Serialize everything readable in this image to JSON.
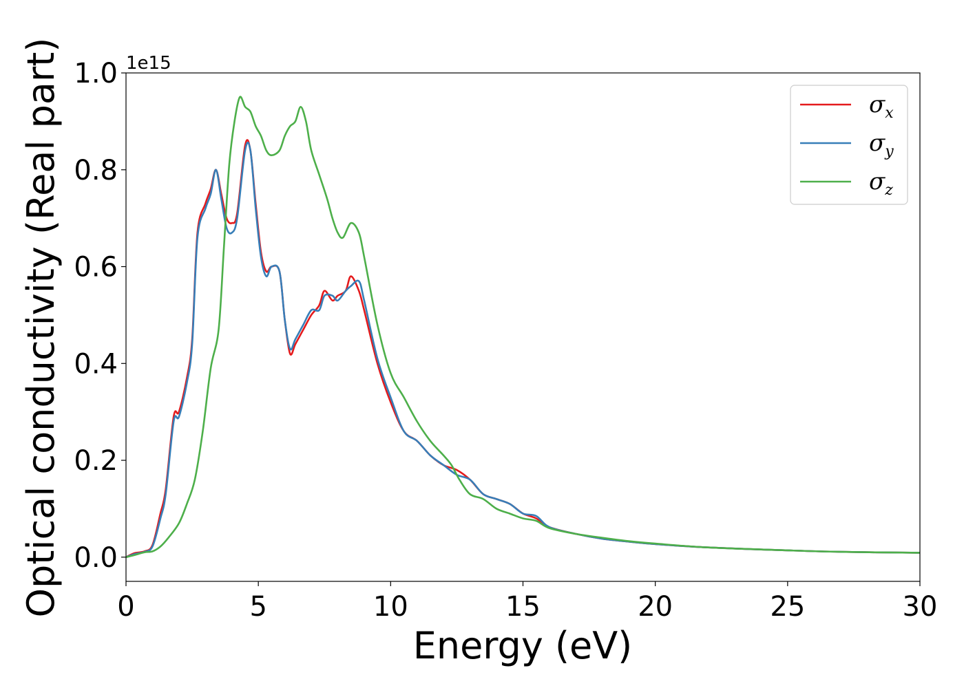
{
  "chart_data": {
    "type": "line",
    "xlabel": "Energy (eV)",
    "ylabel": "Optical conductivity (Real part)",
    "offset_text": "1e15",
    "xlim": [
      0,
      30
    ],
    "ylim": [
      -0.05,
      1.0
    ],
    "xticks": [
      0,
      5,
      10,
      15,
      20,
      25,
      30
    ],
    "yticks": [
      0.0,
      0.2,
      0.4,
      0.6,
      0.8,
      1.0
    ],
    "xtick_labels": [
      "0",
      "5",
      "10",
      "15",
      "20",
      "25",
      "30"
    ],
    "ytick_labels": [
      "0.0",
      "0.2",
      "0.4",
      "0.6",
      "0.8",
      "1.0"
    ],
    "grid": false,
    "legend_position": "top-right",
    "series": [
      {
        "name": "σ",
        "subscript": "x",
        "color": "#e41a1c",
        "x": [
          0,
          0.3,
          0.7,
          1.0,
          1.3,
          1.5,
          1.8,
          2.0,
          2.3,
          2.5,
          2.7,
          3.0,
          3.2,
          3.4,
          3.6,
          3.8,
          4.0,
          4.2,
          4.5,
          4.7,
          4.9,
          5.1,
          5.3,
          5.5,
          5.8,
          6.0,
          6.2,
          6.4,
          6.7,
          7.0,
          7.3,
          7.5,
          7.8,
          8.0,
          8.3,
          8.5,
          8.8,
          9.0,
          9.5,
          10.0,
          10.5,
          11.0,
          11.5,
          12.0,
          12.5,
          13.0,
          13.5,
          14.0,
          14.5,
          15.0,
          15.5,
          16.0,
          17.0,
          18.0,
          19.0,
          20.0,
          22.0,
          25.0,
          27.0,
          30.0
        ],
        "values": [
          0.0,
          0.008,
          0.012,
          0.025,
          0.09,
          0.14,
          0.29,
          0.3,
          0.37,
          0.45,
          0.67,
          0.73,
          0.76,
          0.8,
          0.75,
          0.7,
          0.69,
          0.71,
          0.85,
          0.84,
          0.73,
          0.63,
          0.59,
          0.6,
          0.59,
          0.49,
          0.42,
          0.44,
          0.47,
          0.5,
          0.52,
          0.55,
          0.53,
          0.54,
          0.55,
          0.58,
          0.55,
          0.51,
          0.4,
          0.32,
          0.26,
          0.24,
          0.21,
          0.19,
          0.18,
          0.16,
          0.13,
          0.12,
          0.11,
          0.09,
          0.08,
          0.062,
          0.048,
          0.038,
          0.032,
          0.027,
          0.02,
          0.014,
          0.011,
          0.009
        ]
      },
      {
        "name": "σ",
        "subscript": "y",
        "color": "#377eb8",
        "x": [
          0,
          0.3,
          0.7,
          1.0,
          1.3,
          1.5,
          1.8,
          2.0,
          2.3,
          2.5,
          2.7,
          3.0,
          3.2,
          3.4,
          3.6,
          3.8,
          4.0,
          4.2,
          4.5,
          4.7,
          4.9,
          5.1,
          5.3,
          5.5,
          5.8,
          6.0,
          6.2,
          6.4,
          6.7,
          7.0,
          7.3,
          7.5,
          7.8,
          8.0,
          8.3,
          8.5,
          8.8,
          9.0,
          9.5,
          10.0,
          10.5,
          11.0,
          11.5,
          12.0,
          12.5,
          13.0,
          13.5,
          14.0,
          14.5,
          15.0,
          15.5,
          16.0,
          17.0,
          18.0,
          19.0,
          20.0,
          22.0,
          25.0,
          27.0,
          30.0
        ],
        "values": [
          0.0,
          0.006,
          0.011,
          0.022,
          0.08,
          0.13,
          0.28,
          0.29,
          0.36,
          0.44,
          0.66,
          0.72,
          0.75,
          0.8,
          0.74,
          0.68,
          0.67,
          0.7,
          0.84,
          0.84,
          0.72,
          0.62,
          0.58,
          0.6,
          0.59,
          0.49,
          0.43,
          0.45,
          0.48,
          0.51,
          0.51,
          0.54,
          0.54,
          0.53,
          0.55,
          0.56,
          0.57,
          0.53,
          0.41,
          0.33,
          0.26,
          0.24,
          0.21,
          0.19,
          0.17,
          0.16,
          0.13,
          0.12,
          0.11,
          0.09,
          0.085,
          0.062,
          0.048,
          0.038,
          0.032,
          0.027,
          0.02,
          0.014,
          0.011,
          0.009
        ]
      },
      {
        "name": "σ",
        "subscript": "z",
        "color": "#4daf4a",
        "x": [
          0,
          0.3,
          0.7,
          1.0,
          1.3,
          1.6,
          2.0,
          2.3,
          2.6,
          2.9,
          3.2,
          3.5,
          3.7,
          3.9,
          4.1,
          4.3,
          4.5,
          4.7,
          4.9,
          5.1,
          5.3,
          5.5,
          5.8,
          6.0,
          6.2,
          6.4,
          6.6,
          6.8,
          7.0,
          7.3,
          7.6,
          7.8,
          8.0,
          8.2,
          8.5,
          8.8,
          9.0,
          9.5,
          10.0,
          10.5,
          11.0,
          11.5,
          12.0,
          12.3,
          12.6,
          13.0,
          13.5,
          14.0,
          14.5,
          15.0,
          15.5,
          16.0,
          17.0,
          18.0,
          19.0,
          20.0,
          22.0,
          25.0,
          27.0,
          30.0
        ],
        "values": [
          0.0,
          0.004,
          0.01,
          0.012,
          0.022,
          0.04,
          0.07,
          0.11,
          0.16,
          0.26,
          0.39,
          0.47,
          0.64,
          0.81,
          0.9,
          0.95,
          0.93,
          0.92,
          0.89,
          0.87,
          0.84,
          0.83,
          0.84,
          0.87,
          0.89,
          0.9,
          0.93,
          0.9,
          0.84,
          0.79,
          0.74,
          0.7,
          0.67,
          0.66,
          0.69,
          0.67,
          0.62,
          0.48,
          0.38,
          0.33,
          0.28,
          0.24,
          0.21,
          0.19,
          0.16,
          0.13,
          0.12,
          0.1,
          0.09,
          0.08,
          0.075,
          0.06,
          0.048,
          0.04,
          0.033,
          0.028,
          0.02,
          0.014,
          0.011,
          0.009
        ]
      }
    ]
  }
}
